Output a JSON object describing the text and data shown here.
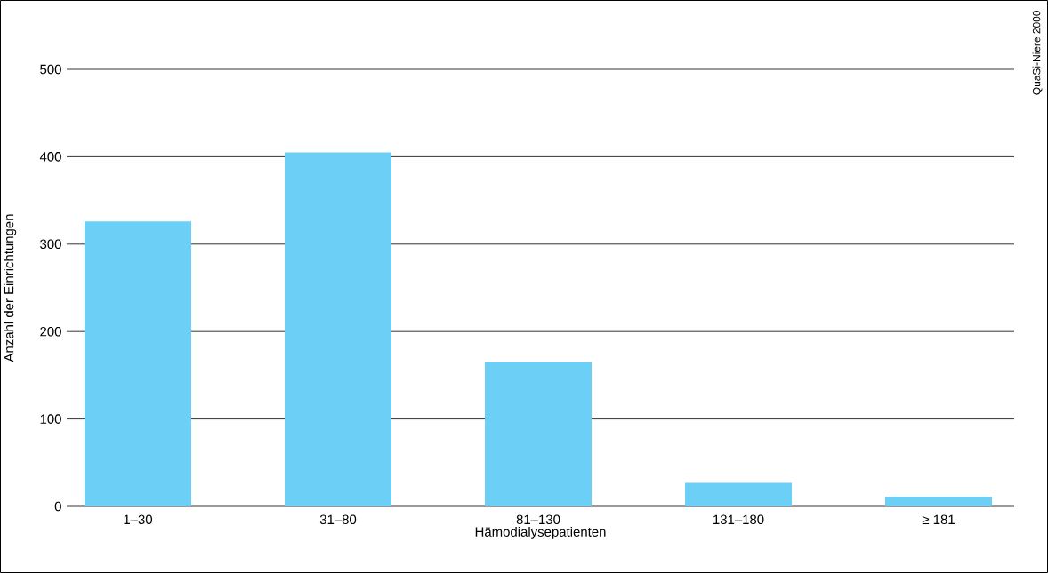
{
  "chart_data": {
    "type": "bar",
    "xlabel": "Hämodialysepatienten",
    "ylabel": "Anzahl der Einrichtungen",
    "categories": [
      "1–30",
      "31–80",
      "81–130",
      "131–180",
      "≥ 181"
    ],
    "values": [
      326,
      405,
      165,
      27,
      11
    ],
    "color": "#6ccff6",
    "ylim": [
      0,
      500
    ],
    "yticks": [
      0,
      100,
      200,
      300,
      400,
      500
    ],
    "grid": "y",
    "annotations": [
      "QuaSi-Niere 2000"
    ]
  }
}
